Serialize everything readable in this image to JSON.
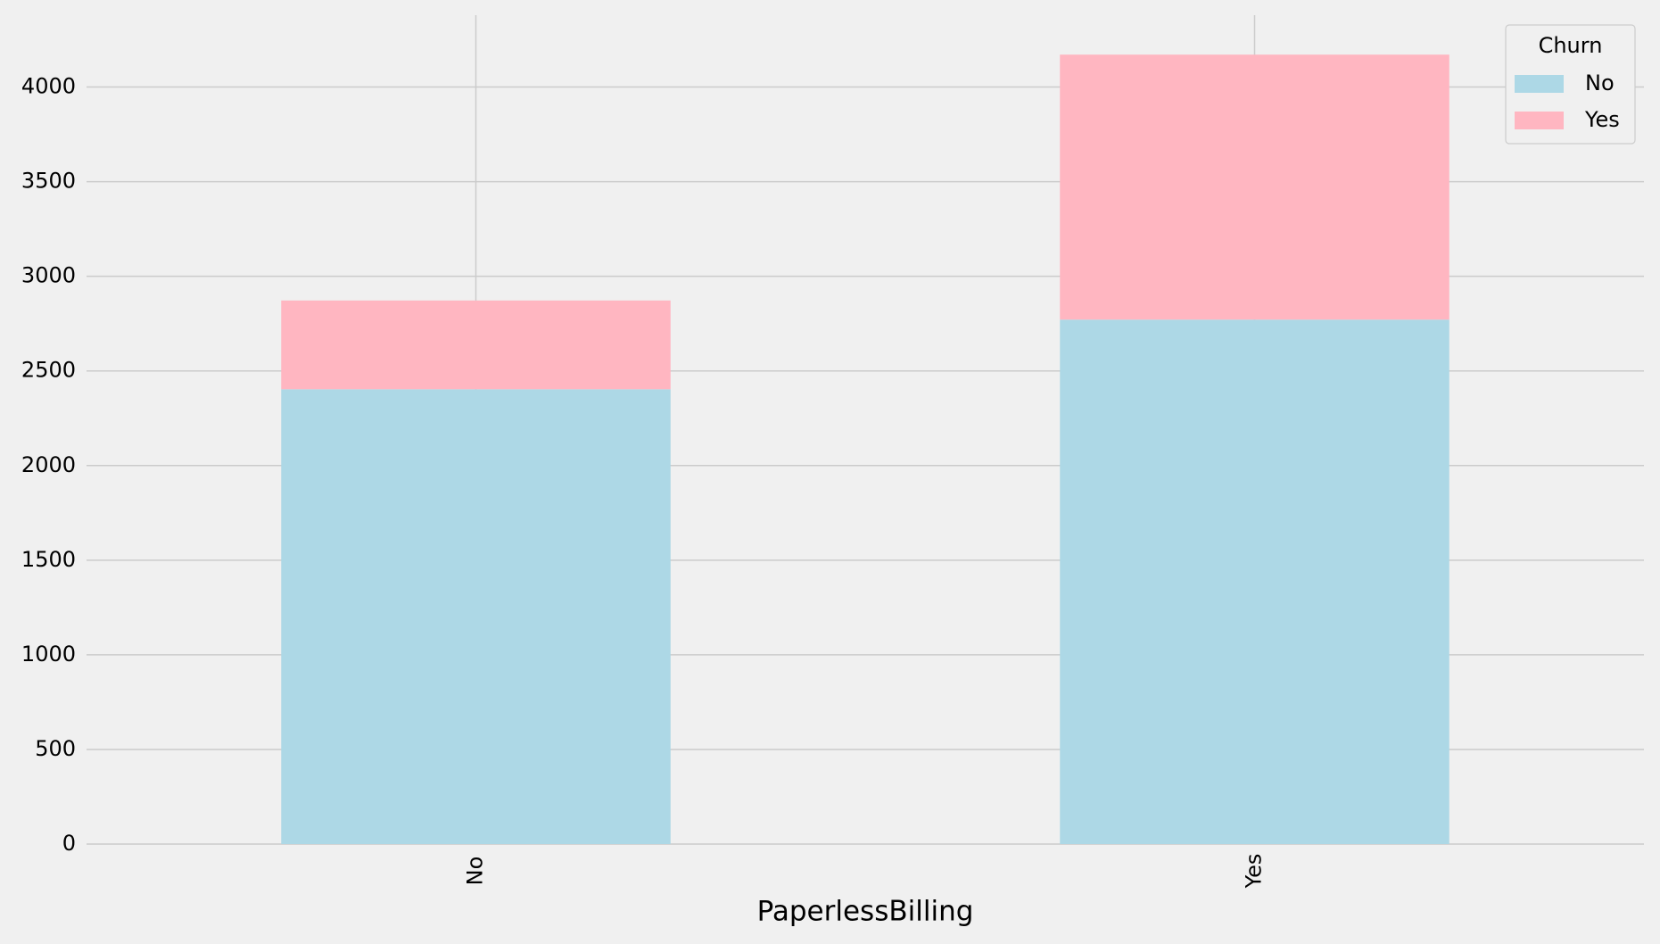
{
  "chart_data": {
    "type": "stacked_bar",
    "x_label": "PaperlessBilling",
    "categories": [
      "No",
      "Yes"
    ],
    "series": [
      {
        "name": "No",
        "color": "#add8e6",
        "values": [
          2403,
          2771
        ]
      },
      {
        "name": "Yes",
        "color": "#ffb6c1",
        "values": [
          469,
          1400
        ]
      }
    ],
    "ylim": [
      0,
      4379.55
    ],
    "yticks": [
      0,
      500,
      1000,
      1500,
      2000,
      2500,
      3000,
      3500,
      4000
    ],
    "grid": true,
    "legend_title": "Churn",
    "legend_position": "upper-right"
  }
}
